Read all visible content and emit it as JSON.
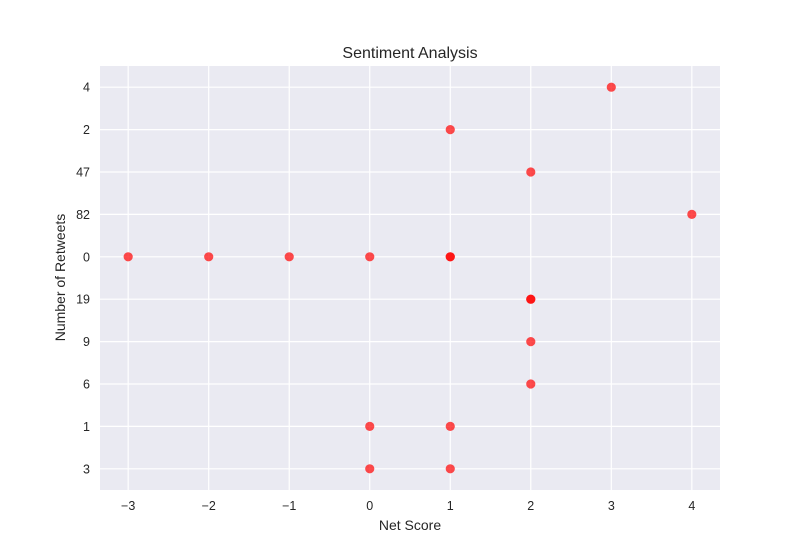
{
  "chart_data": {
    "type": "scatter",
    "title": "Sentiment Analysis",
    "xlabel": "Net Score",
    "ylabel": "Number of Retweets",
    "x_ticks": [
      -3,
      -2,
      -1,
      0,
      1,
      2,
      3,
      4
    ],
    "x_tick_labels": [
      "−3",
      "−2",
      "−1",
      "0",
      "1",
      "2",
      "3",
      "4"
    ],
    "xlim": [
      -3.35,
      4.35
    ],
    "y_categories": [
      "3",
      "1",
      "6",
      "9",
      "19",
      "0",
      "82",
      "47",
      "2",
      "4"
    ],
    "grid": true,
    "colors": {
      "plot_bg": "#eaeaf2",
      "point": "#ff0000"
    },
    "points": [
      {
        "x": 3,
        "y": "4"
      },
      {
        "x": 1,
        "y": "2"
      },
      {
        "x": 2,
        "y": "47"
      },
      {
        "x": 4,
        "y": "82"
      },
      {
        "x": -3,
        "y": "0"
      },
      {
        "x": -2,
        "y": "0"
      },
      {
        "x": -1,
        "y": "0"
      },
      {
        "x": 0,
        "y": "0"
      },
      {
        "x": 1,
        "y": "0"
      },
      {
        "x": 1,
        "y": "0"
      },
      {
        "x": 2,
        "y": "19"
      },
      {
        "x": 2,
        "y": "19"
      },
      {
        "x": 2,
        "y": "9"
      },
      {
        "x": 2,
        "y": "6"
      },
      {
        "x": 0,
        "y": "1"
      },
      {
        "x": 1,
        "y": "1"
      },
      {
        "x": 0,
        "y": "3"
      },
      {
        "x": 1,
        "y": "3"
      }
    ]
  }
}
